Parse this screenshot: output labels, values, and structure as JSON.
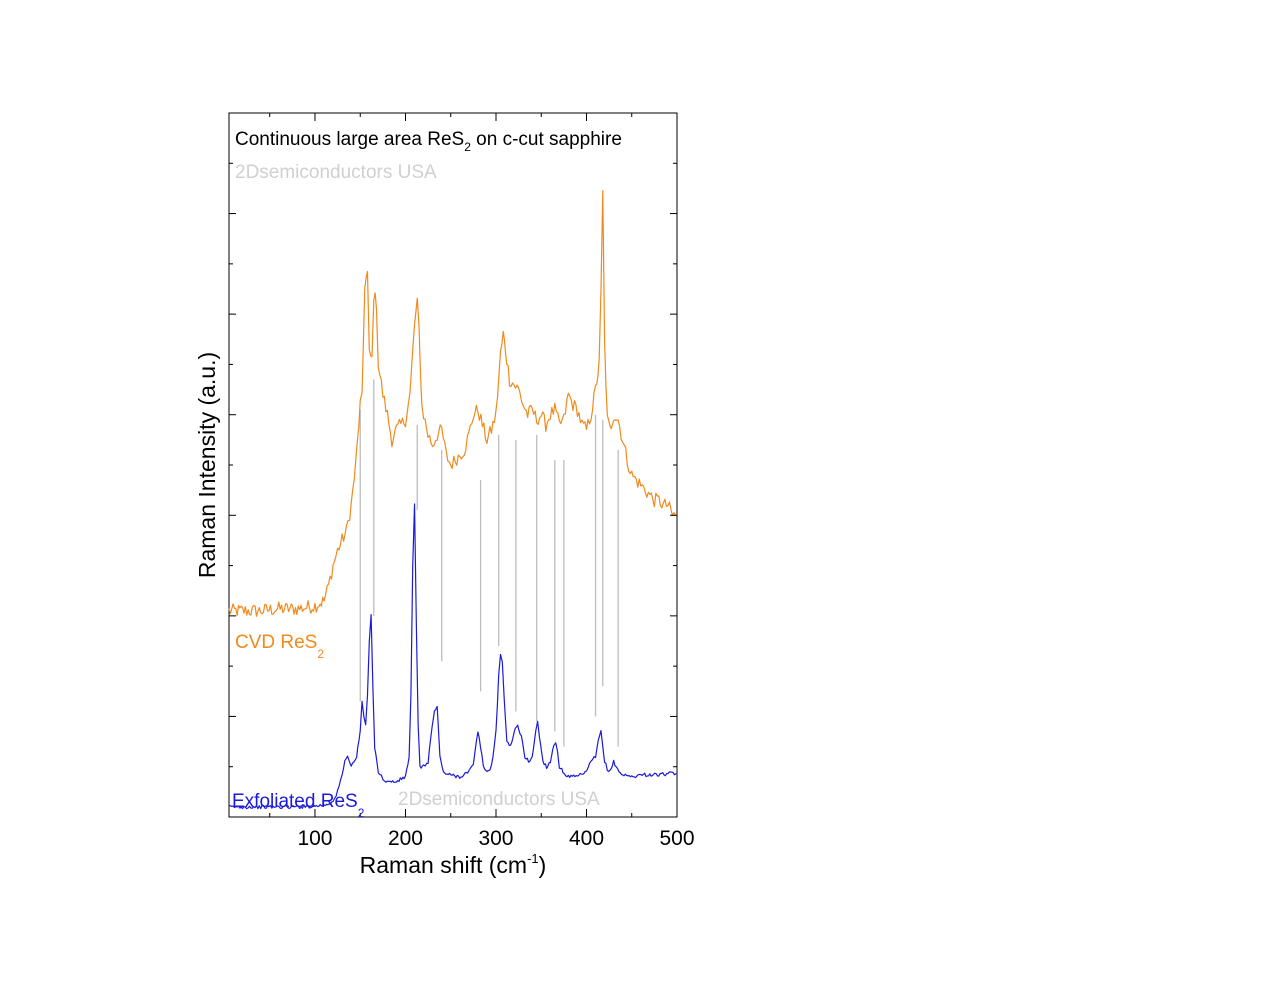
{
  "chart_data": {
    "type": "line",
    "title": "",
    "xlabel": {
      "main": "Raman shift (cm",
      "sup": "-1",
      "end": ")"
    },
    "ylabel": "Raman Intensity (a.u.)",
    "xlim": [
      5,
      500
    ],
    "ylim": [
      0,
      7
    ],
    "x_ticks": [
      100,
      200,
      300,
      400,
      500
    ],
    "y_ticks_show_labels": false,
    "grid": false,
    "annotations": {
      "headline": {
        "main": "Continuous large area ReS",
        "sub": "2",
        "end": " on c-cut sapphire"
      },
      "watermark_top": "2Dsemiconductors USA",
      "watermark_bottom": "2Dsemiconductors USA",
      "cvd_label": {
        "main": "CVD ReS",
        "sub": "2"
      },
      "exf_label": {
        "main": "Exfoliated ReS",
        "sub": "2"
      }
    },
    "colors": {
      "cvd": "#f08a1c",
      "exfoliated": "#1a1adc",
      "guides": "#bdbdbd",
      "watermark": "#d0d0d0"
    },
    "series": [
      {
        "name": "CVD ReS2",
        "x": [
          5,
          20,
          40,
          60,
          80,
          100,
          110,
          115,
          120,
          125,
          130,
          135,
          140,
          145,
          150,
          152,
          155,
          158,
          160,
          163,
          165,
          168,
          170,
          175,
          180,
          185,
          190,
          195,
          200,
          205,
          210,
          213,
          215,
          218,
          220,
          225,
          230,
          235,
          240,
          245,
          250,
          255,
          260,
          265,
          270,
          275,
          280,
          285,
          290,
          295,
          300,
          305,
          308,
          312,
          315,
          320,
          325,
          330,
          335,
          340,
          345,
          350,
          355,
          360,
          365,
          370,
          375,
          380,
          385,
          390,
          395,
          400,
          405,
          410,
          414,
          416,
          418,
          420,
          423,
          426,
          430,
          435,
          440,
          445,
          450,
          455,
          460,
          465,
          470,
          475,
          480,
          485,
          490,
          495,
          500
        ],
        "y": [
          2.05,
          2.05,
          2.05,
          2.07,
          2.07,
          2.1,
          2.15,
          2.3,
          2.5,
          2.65,
          2.75,
          2.85,
          3.1,
          3.5,
          4.1,
          4.15,
          5.3,
          5.4,
          4.6,
          4.55,
          5.2,
          5.1,
          4.5,
          4.2,
          4.0,
          3.75,
          3.85,
          3.9,
          3.95,
          4.2,
          4.9,
          5.1,
          4.85,
          4.1,
          4.0,
          3.8,
          3.7,
          3.8,
          3.85,
          3.6,
          3.5,
          3.55,
          3.6,
          3.65,
          3.8,
          4.0,
          4.05,
          3.9,
          3.75,
          3.85,
          4.0,
          4.6,
          4.8,
          4.55,
          4.35,
          4.3,
          4.25,
          4.1,
          4.0,
          4.05,
          3.95,
          4.0,
          3.9,
          4.0,
          4.05,
          3.9,
          3.95,
          4.2,
          4.1,
          4.05,
          3.9,
          3.85,
          4.0,
          4.25,
          4.5,
          5.2,
          6.2,
          4.7,
          3.95,
          3.85,
          4.0,
          3.95,
          3.75,
          3.55,
          3.4,
          3.35,
          3.3,
          3.25,
          3.2,
          3.15,
          3.15,
          3.1,
          3.1,
          3.0,
          3.0
        ]
      },
      {
        "name": "Exfoliated ReS2",
        "x": [
          5,
          20,
          40,
          60,
          80,
          100,
          110,
          120,
          125,
          130,
          133,
          136,
          140,
          143,
          146,
          150,
          152,
          154,
          156,
          158,
          160,
          162,
          164,
          166,
          170,
          175,
          180,
          190,
          200,
          204,
          206,
          208,
          210,
          212,
          214,
          216,
          220,
          225,
          228,
          232,
          235,
          238,
          242,
          246,
          250,
          260,
          270,
          275,
          280,
          283,
          286,
          290,
          295,
          300,
          303,
          305,
          307,
          309,
          312,
          316,
          320,
          324,
          328,
          332,
          336,
          340,
          344,
          346,
          348,
          352,
          356,
          360,
          364,
          366,
          368,
          370,
          374,
          380,
          390,
          400,
          405,
          410,
          413,
          416,
          418,
          420,
          423,
          426,
          430,
          433,
          436,
          440,
          450,
          460,
          470,
          480,
          490,
          500
        ],
        "y": [
          0.1,
          0.1,
          0.1,
          0.1,
          0.1,
          0.11,
          0.12,
          0.15,
          0.25,
          0.42,
          0.55,
          0.62,
          0.5,
          0.55,
          0.6,
          0.85,
          1.15,
          1.0,
          0.9,
          1.2,
          1.75,
          2.0,
          1.3,
          0.7,
          0.45,
          0.38,
          0.35,
          0.35,
          0.4,
          0.6,
          1.2,
          2.5,
          3.1,
          1.9,
          0.9,
          0.5,
          0.5,
          0.55,
          0.8,
          1.05,
          1.1,
          0.6,
          0.45,
          0.42,
          0.42,
          0.4,
          0.45,
          0.52,
          0.85,
          0.7,
          0.5,
          0.45,
          0.5,
          0.85,
          1.4,
          1.6,
          1.55,
          1.2,
          0.75,
          0.7,
          0.85,
          0.9,
          0.8,
          0.6,
          0.55,
          0.6,
          0.85,
          0.95,
          0.8,
          0.55,
          0.5,
          0.55,
          0.72,
          0.75,
          0.65,
          0.5,
          0.45,
          0.4,
          0.4,
          0.45,
          0.55,
          0.6,
          0.75,
          0.85,
          0.7,
          0.55,
          0.48,
          0.45,
          0.55,
          0.5,
          0.45,
          0.42,
          0.4,
          0.42,
          0.42,
          0.42,
          0.43,
          0.43
        ]
      }
    ],
    "guide_lines": [
      {
        "x1": 150,
        "y1": 4.05,
        "x2": 150,
        "y2": 1.15
      },
      {
        "x1": 165,
        "y1": 4.35,
        "x2": 165,
        "y2": 2.0
      },
      {
        "x1": 213,
        "y1": 3.9,
        "x2": 213,
        "y2": 3.05
      },
      {
        "x1": 240,
        "y1": 3.65,
        "x2": 240,
        "y2": 1.55
      },
      {
        "x1": 283,
        "y1": 3.35,
        "x2": 283,
        "y2": 1.25
      },
      {
        "x1": 303,
        "y1": 3.8,
        "x2": 303,
        "y2": 1.7
      },
      {
        "x1": 322,
        "y1": 3.75,
        "x2": 322,
        "y2": 1.05
      },
      {
        "x1": 345,
        "y1": 3.8,
        "x2": 345,
        "y2": 0.95
      },
      {
        "x1": 365,
        "y1": 3.55,
        "x2": 365,
        "y2": 0.85
      },
      {
        "x1": 375,
        "y1": 3.55,
        "x2": 375,
        "y2": 0.7
      },
      {
        "x1": 410,
        "y1": 4.0,
        "x2": 410,
        "y2": 1.0
      },
      {
        "x1": 418,
        "y1": 3.95,
        "x2": 418,
        "y2": 1.3
      },
      {
        "x1": 435,
        "y1": 3.65,
        "x2": 435,
        "y2": 0.7
      }
    ]
  }
}
